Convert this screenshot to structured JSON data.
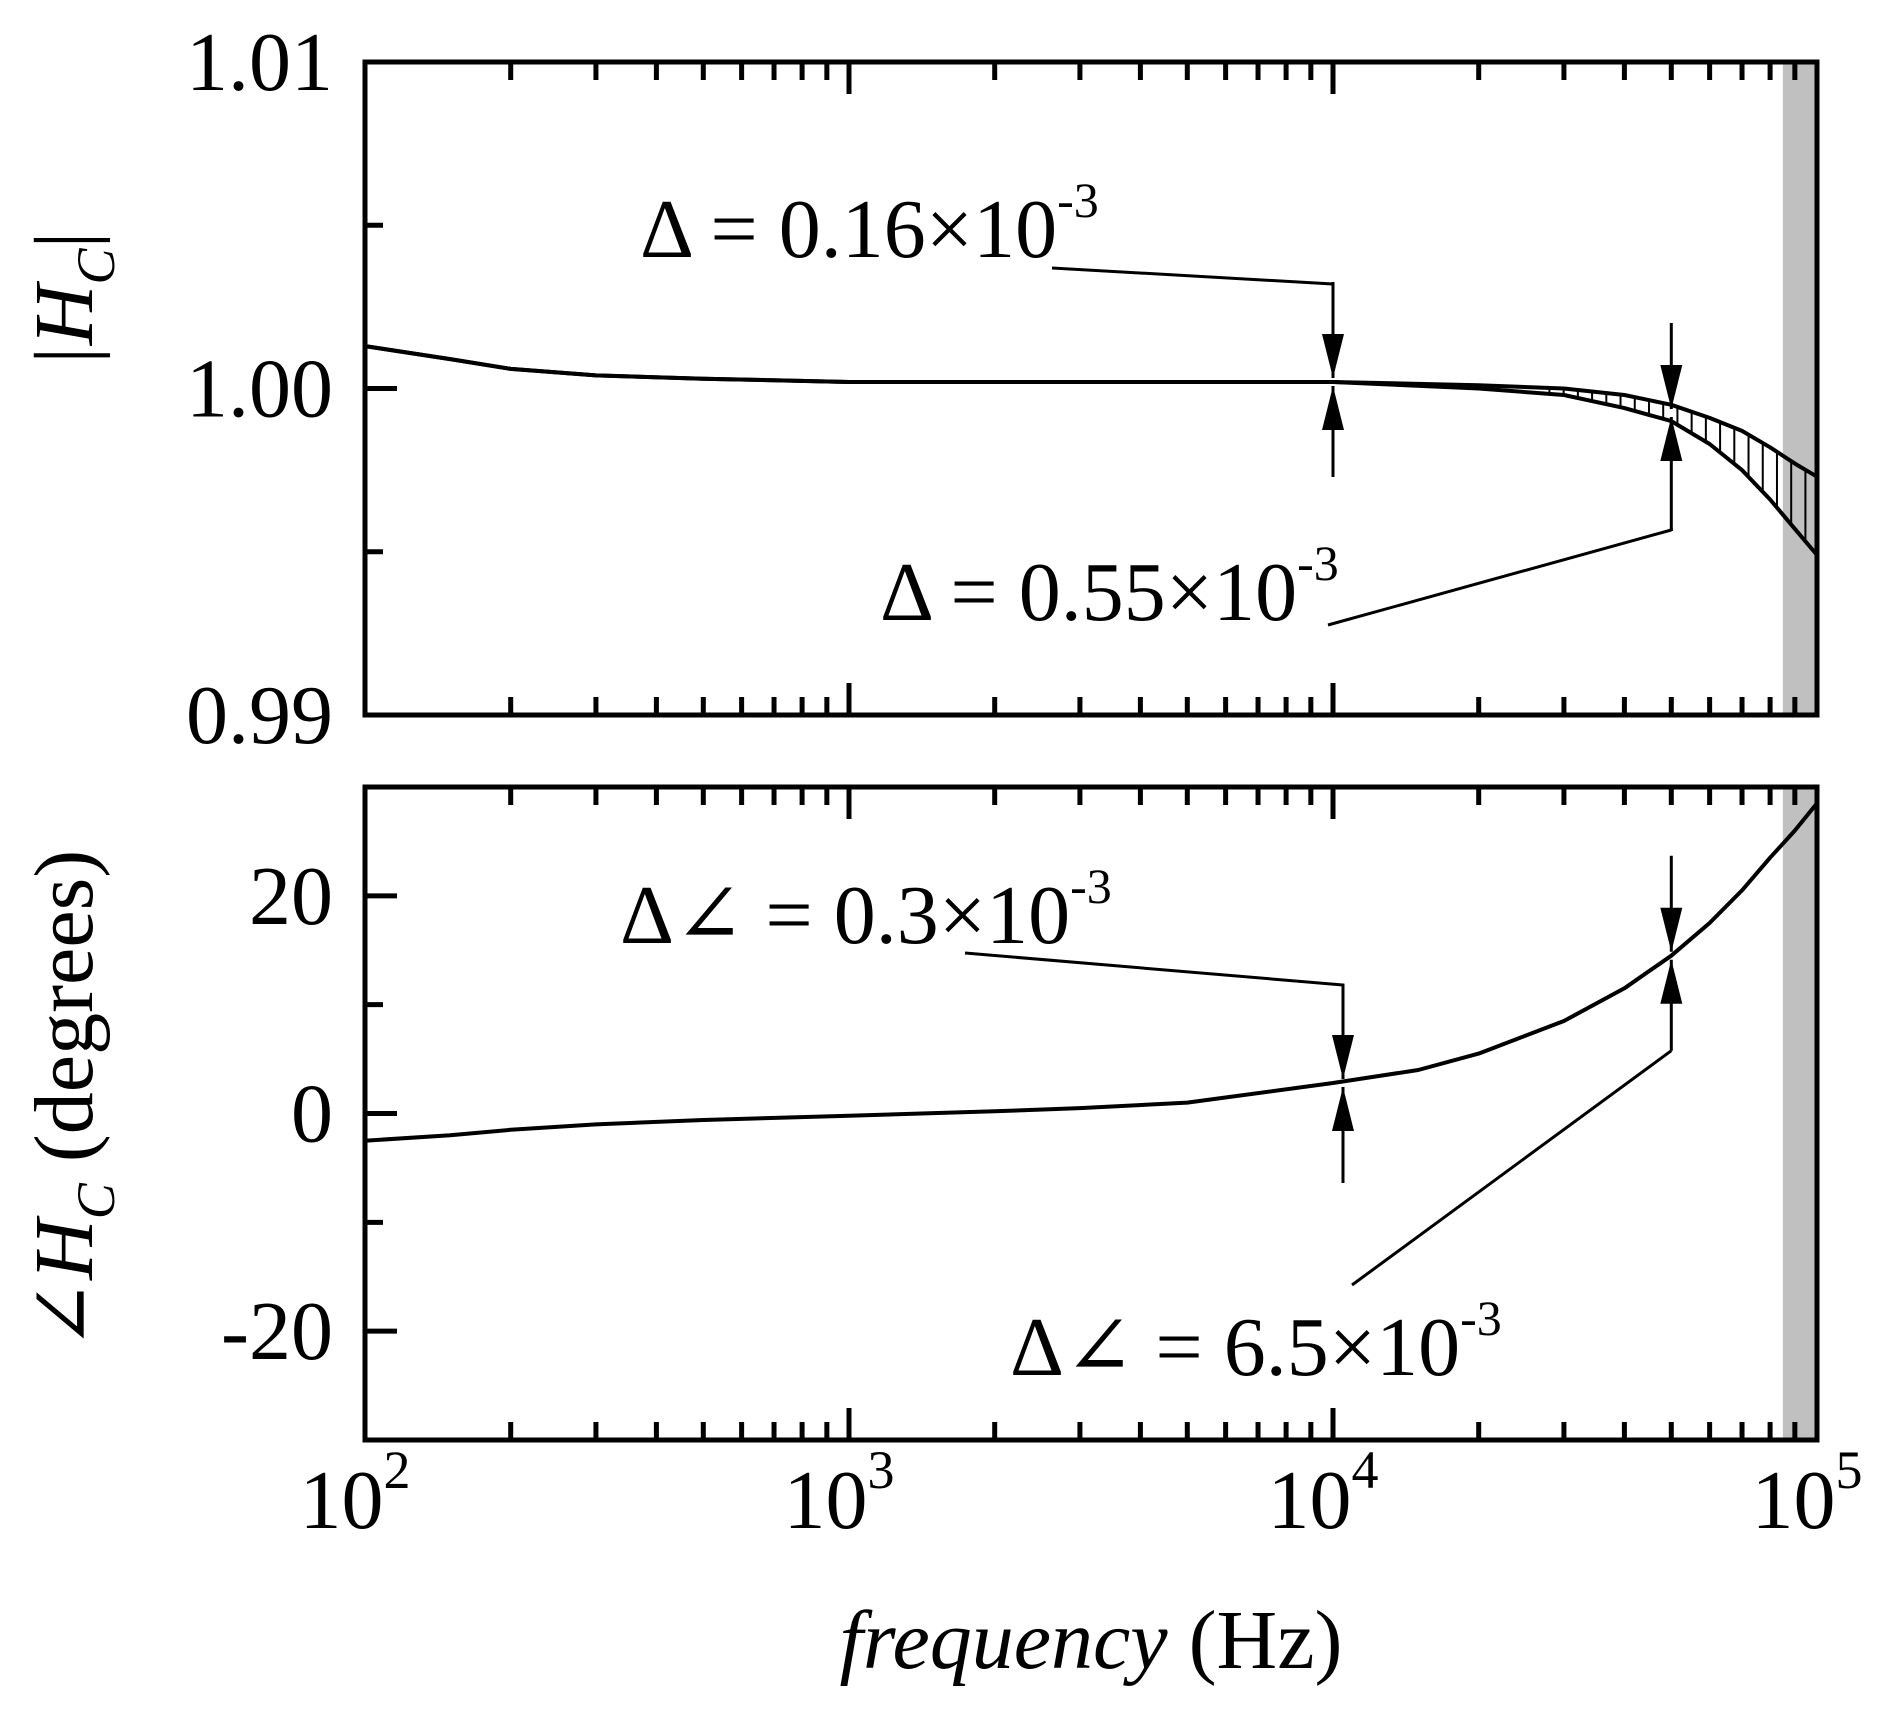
{
  "chart_data": [
    {
      "type": "line",
      "panel": "magnitude",
      "ylabel": {
        "main": "|H",
        "sub": "C",
        "end": "|"
      },
      "xscale": "log",
      "xlim": [
        100,
        100000
      ],
      "ylim": [
        0.99,
        1.01
      ],
      "yticks": [
        {
          "value": 1.01,
          "label": "1.01"
        },
        {
          "value": 1.0,
          "label": "1.00"
        },
        {
          "value": 0.99,
          "label": "0.99"
        }
      ],
      "shaded_band": [
        85000,
        100000
      ],
      "series": [
        {
          "x": [
            100,
            150,
            200,
            300,
            500,
            1000,
            3000,
            10000,
            20000,
            30000,
            40000,
            50000,
            60000,
            70000,
            80000,
            90000,
            100000
          ],
          "y": [
            1.0013,
            1.0009,
            1.0006,
            1.0004,
            1.0003,
            1.0002,
            1.0002,
            1.0002,
            1.0001,
            1.0,
            0.9998,
            0.9995,
            0.9991,
            0.9987,
            0.9982,
            0.9977,
            0.9973
          ]
        },
        {
          "x": [
            100,
            150,
            200,
            300,
            500,
            1000,
            3000,
            10000,
            20000,
            30000,
            40000,
            50000,
            60000,
            70000,
            80000,
            90000,
            100000
          ],
          "y": [
            1.0013,
            1.0009,
            1.0006,
            1.0004,
            1.0003,
            1.0002,
            1.0002,
            1.0002,
            1.0,
            0.9998,
            0.9994,
            0.999,
            0.9983,
            0.9975,
            0.9966,
            0.9957,
            0.9949
          ]
        }
      ],
      "annotations": [
        {
          "prefix": "Δ = 0.16×10",
          "exponent": "-3",
          "x": 10000
        },
        {
          "prefix": "Δ = 0.55×10",
          "exponent": "-3",
          "x": 50000
        }
      ]
    },
    {
      "type": "line",
      "panel": "phase",
      "ylabel": {
        "pre": "∠H",
        "sub": "C",
        "post": " (degrees)"
      },
      "xscale": "log",
      "xlim": [
        100,
        100000
      ],
      "ylim": [
        -30,
        30
      ],
      "yticks": [
        {
          "value": 20,
          "label": "20"
        },
        {
          "value": 0,
          "label": "0"
        },
        {
          "value": -20,
          "label": "-20"
        }
      ],
      "xticks": [
        {
          "value": 100,
          "base": "10",
          "exp": "2"
        },
        {
          "value": 1000,
          "base": "10",
          "exp": "3"
        },
        {
          "value": 10000,
          "base": "10",
          "exp": "4"
        },
        {
          "value": 100000,
          "base": "10",
          "exp": "5"
        }
      ],
      "xlabel": {
        "italic": "frequency",
        "rest": " (Hz)"
      },
      "shaded_band": [
        85000,
        100000
      ],
      "series": [
        {
          "x": [
            100,
            150,
            200,
            300,
            500,
            1000,
            2000,
            3000,
            5000,
            10000,
            15000,
            20000,
            30000,
            40000,
            50000,
            60000,
            70000,
            80000,
            90000,
            100000
          ],
          "y": [
            -2.5,
            -2.0,
            -1.5,
            -1.0,
            -0.6,
            -0.2,
            0.2,
            0.5,
            1.0,
            2.8,
            4.0,
            5.5,
            8.5,
            11.5,
            14.5,
            17.5,
            20.5,
            23.5,
            26.0,
            28.5
          ]
        }
      ],
      "annotations": [
        {
          "prefix": "Δ∠ = 0.3×10",
          "exponent": "-3",
          "x": 10000
        },
        {
          "prefix": "Δ∠ = 6.5×10",
          "exponent": "-3",
          "x": 50000
        }
      ]
    }
  ],
  "colors": {
    "line": "#000000",
    "shade": "#c0c0c0",
    "background": "#ffffff"
  }
}
